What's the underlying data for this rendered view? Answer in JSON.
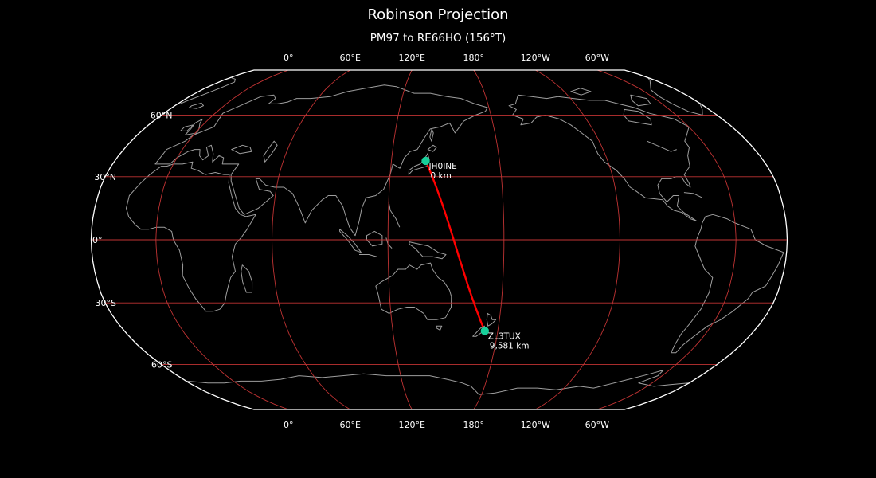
{
  "title": "Robinson Projection",
  "subtitle": "PM97 to RE66HO (156°T)",
  "colors": {
    "background": "#000000",
    "text": "#ffffff",
    "coastline": "#9e9e9e",
    "graticule": "#c03333",
    "boundary": "#ffffff",
    "route": "#ff0000",
    "marker": "#17cf9a"
  },
  "axis": {
    "longitude_labels": [
      {
        "label": "0°",
        "lon": 0
      },
      {
        "label": "60°E",
        "lon": 60
      },
      {
        "label": "120°E",
        "lon": 120
      },
      {
        "label": "180°",
        "lon": 180
      },
      {
        "label": "120°W",
        "lon": -120
      },
      {
        "label": "60°W",
        "lon": -60
      }
    ],
    "latitude_labels": [
      {
        "label": "60°N",
        "lat": 60
      },
      {
        "label": "30°N",
        "lat": 30
      },
      {
        "label": "0°",
        "lat": 0
      },
      {
        "label": "30°S",
        "lat": -30
      },
      {
        "label": "60°S",
        "lat": -60
      }
    ]
  },
  "chart_data": {
    "type": "map",
    "projection": "Robinson",
    "central_longitude": 146.5,
    "title": "Robinson Projection",
    "subtitle": "PM97 to RE66HO (156°T)",
    "route": {
      "from_grid": "PM97",
      "to_grid": "RE66HO",
      "bearing": "156°T",
      "points": [
        {
          "callsign": "JH0INE",
          "distance": "0 km",
          "lat": 37.5,
          "lon": 139.0
        },
        {
          "callsign": "ZL3TUX",
          "distance": "9,581 km",
          "lat": -43.4,
          "lon": 172.6
        }
      ]
    },
    "graticule": {
      "parallels": [
        60,
        30,
        0,
        -30,
        -60
      ],
      "meridians": [
        0,
        60,
        120,
        180,
        -120,
        -60
      ]
    }
  }
}
